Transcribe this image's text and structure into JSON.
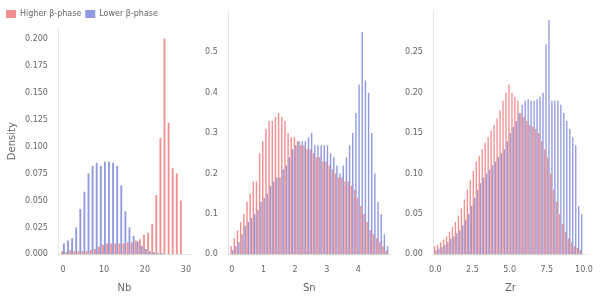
{
  "chart_data": [
    {
      "type": "bar",
      "xlabel": "Nb",
      "ylabel": "Density",
      "x": [
        0,
        1,
        2,
        3,
        4,
        5,
        6,
        7,
        8,
        9,
        10,
        11,
        12,
        13,
        14,
        15,
        16,
        17,
        18,
        19,
        20,
        21,
        22,
        23,
        24,
        25,
        26,
        27,
        28,
        29
      ],
      "series": [
        {
          "name": "Higher β-phase",
          "color": "#E8696B",
          "values": [
            0.003,
            0.002,
            0.004,
            0.003,
            0.003,
            0.003,
            0.003,
            0.004,
            0.005,
            0.007,
            0.009,
            0.01,
            0.01,
            0.01,
            0.01,
            0.01,
            0.011,
            0.011,
            0.013,
            0.014,
            0.018,
            0.02,
            0.028,
            0.055,
            0.108,
            0.2,
            0.122,
            0.08,
            0.075,
            0.05
          ]
        },
        {
          "name": "Lower β-phase",
          "color": "#6B78D4",
          "values": [
            0.01,
            0.013,
            0.015,
            0.025,
            0.042,
            0.058,
            0.075,
            0.082,
            0.085,
            0.082,
            0.086,
            0.086,
            0.085,
            0.082,
            0.064,
            0.04,
            0.025,
            0.017,
            0.012,
            0.008,
            0.005,
            0.003,
            0.002,
            0.001,
            0.001,
            0.0,
            0.0,
            0.0,
            0.0,
            0.0
          ]
        }
      ],
      "xlim": [
        -1,
        31
      ],
      "ylim": [
        0,
        0.21
      ],
      "xticks": [
        0,
        10,
        20,
        30
      ],
      "yticks": [
        {
          "value": 0.0,
          "label": "0.000"
        },
        0.025,
        {
          "value": 0.05,
          "label": "0.050"
        },
        0.075,
        {
          "value": 0.1,
          "label": "0.100"
        },
        0.125,
        {
          "value": 0.15,
          "label": "0.150"
        },
        0.175,
        {
          "value": 0.2,
          "label": "0.200"
        }
      ],
      "grid": false,
      "legend": "upper left"
    },
    {
      "type": "bar",
      "xlabel": "Sn",
      "x": [
        0.0,
        0.1,
        0.2,
        0.3,
        0.4,
        0.5,
        0.6,
        0.7,
        0.8,
        0.9,
        1.0,
        1.1,
        1.2,
        1.3,
        1.4,
        1.5,
        1.6,
        1.7,
        1.8,
        1.9,
        2.0,
        2.1,
        2.2,
        2.3,
        2.4,
        2.5,
        2.6,
        2.7,
        2.8,
        2.9,
        3.0,
        3.1,
        3.2,
        3.3,
        3.4,
        3.5,
        3.6,
        3.7,
        3.8,
        3.9,
        4.0,
        4.1,
        4.2,
        4.3,
        4.4,
        4.5,
        4.6,
        4.7,
        4.8,
        4.9
      ],
      "series": [
        {
          "name": "Higher β-phase",
          "color": "#E8696B",
          "values": [
            0.02,
            0.04,
            0.06,
            0.08,
            0.1,
            0.13,
            0.15,
            0.18,
            0.18,
            0.25,
            0.28,
            0.31,
            0.33,
            0.33,
            0.34,
            0.35,
            0.34,
            0.33,
            0.3,
            0.29,
            0.29,
            0.28,
            0.27,
            0.27,
            0.26,
            0.26,
            0.25,
            0.24,
            0.24,
            0.23,
            0.23,
            0.22,
            0.21,
            0.2,
            0.19,
            0.19,
            0.18,
            0.18,
            0.17,
            0.16,
            0.14,
            0.12,
            0.1,
            0.08,
            0.06,
            0.05,
            0.04,
            0.03,
            0.02,
            0.01
          ]
        },
        {
          "name": "Lower β-phase",
          "color": "#6B78D4",
          "values": [
            0.01,
            0.02,
            0.03,
            0.05,
            0.07,
            0.08,
            0.09,
            0.1,
            0.11,
            0.13,
            0.14,
            0.15,
            0.17,
            0.18,
            0.19,
            0.19,
            0.21,
            0.22,
            0.24,
            0.26,
            0.27,
            0.28,
            0.28,
            0.28,
            0.29,
            0.3,
            0.27,
            0.27,
            0.27,
            0.27,
            0.27,
            0.25,
            0.24,
            0.22,
            0.2,
            0.22,
            0.24,
            0.27,
            0.3,
            0.35,
            0.42,
            0.55,
            0.43,
            0.4,
            0.3,
            0.2,
            0.13,
            0.1,
            0.05,
            0.02
          ]
        }
      ],
      "xlim": [
        -0.1,
        5.0
      ],
      "ylim": [
        0,
        0.6
      ],
      "xticks": [
        0,
        1,
        2,
        3,
        4
      ],
      "yticks": [
        {
          "value": 0.0,
          "label": "0.0"
        },
        0.1,
        0.2,
        0.3,
        0.4,
        0.5
      ],
      "grid": false
    },
    {
      "type": "bar",
      "xlabel": "Zr",
      "x": [
        0.0,
        0.2,
        0.4,
        0.6,
        0.8,
        1.0,
        1.2,
        1.4,
        1.6,
        1.8,
        2.0,
        2.2,
        2.4,
        2.6,
        2.8,
        3.0,
        3.2,
        3.4,
        3.6,
        3.8,
        4.0,
        4.2,
        4.4,
        4.6,
        4.8,
        5.0,
        5.2,
        5.4,
        5.6,
        5.8,
        6.0,
        6.2,
        6.4,
        6.6,
        6.8,
        7.0,
        7.2,
        7.4,
        7.6,
        7.8,
        8.0,
        8.2,
        8.4,
        8.6,
        8.8,
        9.0,
        9.2,
        9.4,
        9.6,
        9.8
      ],
      "series": [
        {
          "name": "Higher β-phase",
          "color": "#E8696B",
          "values": [
            0.01,
            0.012,
            0.015,
            0.018,
            0.022,
            0.028,
            0.034,
            0.04,
            0.048,
            0.057,
            0.068,
            0.08,
            0.092,
            0.103,
            0.115,
            0.122,
            0.13,
            0.138,
            0.145,
            0.153,
            0.16,
            0.168,
            0.178,
            0.19,
            0.2,
            0.21,
            0.2,
            0.195,
            0.19,
            0.175,
            0.17,
            0.165,
            0.16,
            0.158,
            0.155,
            0.15,
            0.14,
            0.13,
            0.12,
            0.1,
            0.08,
            0.065,
            0.05,
            0.038,
            0.028,
            0.02,
            0.015,
            0.01,
            0.008,
            0.005
          ]
        },
        {
          "name": "Lower β-phase",
          "color": "#6B78D4",
          "values": [
            0.005,
            0.007,
            0.009,
            0.012,
            0.015,
            0.019,
            0.022,
            0.026,
            0.03,
            0.036,
            0.043,
            0.05,
            0.06,
            0.07,
            0.08,
            0.088,
            0.095,
            0.1,
            0.105,
            0.11,
            0.115,
            0.12,
            0.125,
            0.13,
            0.14,
            0.15,
            0.158,
            0.165,
            0.175,
            0.185,
            0.19,
            0.192,
            0.19,
            0.19,
            0.192,
            0.195,
            0.2,
            0.26,
            0.29,
            0.19,
            0.19,
            0.19,
            0.185,
            0.175,
            0.165,
            0.155,
            0.145,
            0.135,
            0.06,
            0.05
          ]
        }
      ],
      "xlim": [
        -0.1,
        10.2
      ],
      "ylim": [
        0,
        0.3
      ],
      "xticks": [
        {
          "value": 0.0,
          "label": "0.0"
        },
        2.5,
        {
          "value": 5.0,
          "label": "5.0"
        },
        7.5,
        {
          "value": 10.0,
          "label": "10.0"
        }
      ],
      "yticks": [
        {
          "value": 0.0,
          "label": "0.00"
        },
        0.05,
        {
          "value": 0.1,
          "label": "0.10"
        },
        0.15,
        {
          "value": 0.2,
          "label": "0.20"
        },
        0.25
      ],
      "grid": false
    }
  ]
}
